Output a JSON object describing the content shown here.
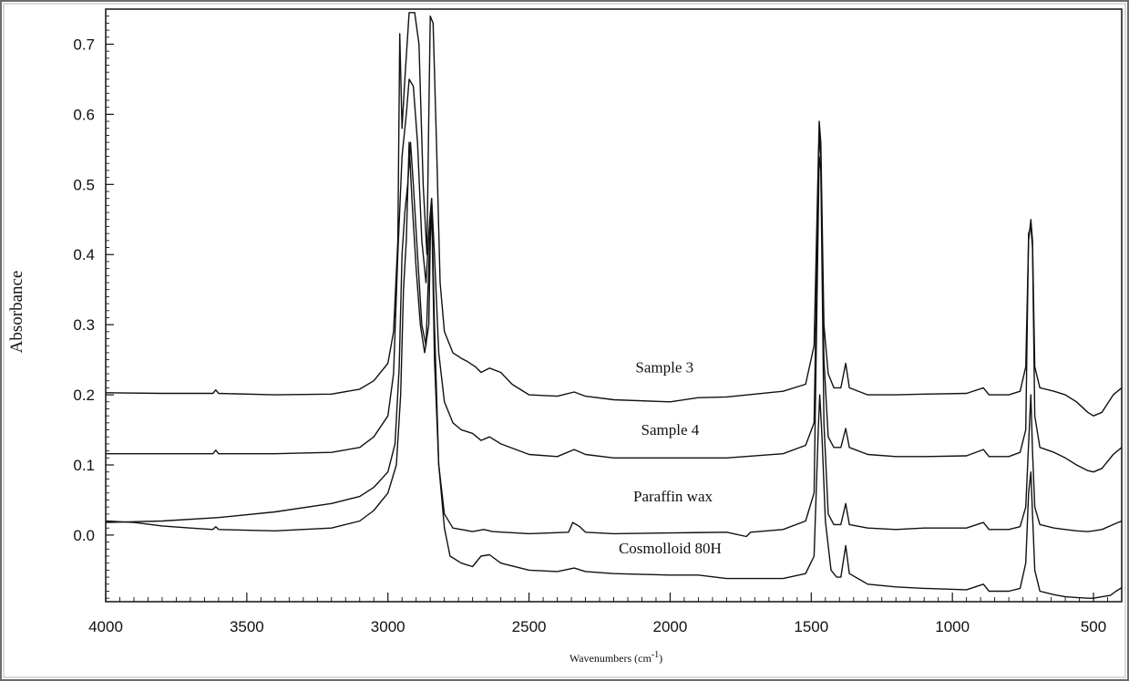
{
  "chart_data": {
    "type": "line",
    "title": "",
    "xlabel": "Wavenumbers (cm",
    "xlabel_sup": "-1",
    "xlabel_tail": ")",
    "ylabel": "Absorbance",
    "xlim": [
      4000,
      400
    ],
    "ylim": [
      -0.095,
      0.75
    ],
    "x_reversed": true,
    "grid": false,
    "x_ticks": [
      4000,
      3500,
      3000,
      2500,
      2000,
      1500,
      1000,
      500
    ],
    "x_tick_labels": [
      "4000",
      "3500",
      "3000",
      "2500",
      "2000",
      "1500",
      "1000",
      "500"
    ],
    "y_ticks": [
      0.0,
      0.1,
      0.2,
      0.3,
      0.4,
      0.5,
      0.6,
      0.7
    ],
    "y_tick_labels": [
      "0.0",
      "0.1",
      "0.2",
      "0.3",
      "0.4",
      "0.5",
      "0.6",
      "0.7"
    ],
    "line_color": "#111111",
    "series": [
      {
        "name": "Sample 3",
        "label_at": [
          2020,
          0.232
        ],
        "points": [
          [
            4000,
            0.203
          ],
          [
            3800,
            0.202
          ],
          [
            3620,
            0.202
          ],
          [
            3610,
            0.207
          ],
          [
            3600,
            0.202
          ],
          [
            3400,
            0.2
          ],
          [
            3200,
            0.201
          ],
          [
            3100,
            0.208
          ],
          [
            3050,
            0.22
          ],
          [
            3000,
            0.245
          ],
          [
            2980,
            0.29
          ],
          [
            2965,
            0.42
          ],
          [
            2958,
            0.715
          ],
          [
            2950,
            0.58
          ],
          [
            2940,
            0.65
          ],
          [
            2925,
            0.745
          ],
          [
            2905,
            0.745
          ],
          [
            2890,
            0.7
          ],
          [
            2875,
            0.5
          ],
          [
            2862,
            0.4
          ],
          [
            2855,
            0.6
          ],
          [
            2850,
            0.74
          ],
          [
            2840,
            0.73
          ],
          [
            2828,
            0.56
          ],
          [
            2815,
            0.36
          ],
          [
            2800,
            0.29
          ],
          [
            2770,
            0.26
          ],
          [
            2740,
            0.252
          ],
          [
            2720,
            0.248
          ],
          [
            2690,
            0.24
          ],
          [
            2670,
            0.232
          ],
          [
            2640,
            0.238
          ],
          [
            2600,
            0.232
          ],
          [
            2560,
            0.215
          ],
          [
            2500,
            0.2
          ],
          [
            2400,
            0.198
          ],
          [
            2340,
            0.204
          ],
          [
            2300,
            0.198
          ],
          [
            2200,
            0.193
          ],
          [
            2000,
            0.19
          ],
          [
            1900,
            0.196
          ],
          [
            1800,
            0.197
          ],
          [
            1600,
            0.205
          ],
          [
            1520,
            0.215
          ],
          [
            1490,
            0.27
          ],
          [
            1472,
            0.59
          ],
          [
            1466,
            0.56
          ],
          [
            1455,
            0.3
          ],
          [
            1440,
            0.23
          ],
          [
            1420,
            0.21
          ],
          [
            1395,
            0.21
          ],
          [
            1378,
            0.245
          ],
          [
            1365,
            0.21
          ],
          [
            1300,
            0.2
          ],
          [
            1200,
            0.2
          ],
          [
            1100,
            0.201
          ],
          [
            950,
            0.202
          ],
          [
            890,
            0.21
          ],
          [
            870,
            0.2
          ],
          [
            800,
            0.2
          ],
          [
            760,
            0.205
          ],
          [
            740,
            0.24
          ],
          [
            730,
            0.42
          ],
          [
            722,
            0.45
          ],
          [
            716,
            0.42
          ],
          [
            708,
            0.24
          ],
          [
            690,
            0.21
          ],
          [
            640,
            0.205
          ],
          [
            600,
            0.2
          ],
          [
            560,
            0.19
          ],
          [
            520,
            0.175
          ],
          [
            500,
            0.17
          ],
          [
            470,
            0.175
          ],
          [
            430,
            0.2
          ],
          [
            400,
            0.21
          ]
        ]
      },
      {
        "name": "Sample 4",
        "label_at": [
          2000,
          0.143
        ],
        "points": [
          [
            4000,
            0.116
          ],
          [
            3800,
            0.116
          ],
          [
            3620,
            0.116
          ],
          [
            3610,
            0.121
          ],
          [
            3600,
            0.116
          ],
          [
            3400,
            0.116
          ],
          [
            3200,
            0.118
          ],
          [
            3100,
            0.125
          ],
          [
            3050,
            0.14
          ],
          [
            3000,
            0.17
          ],
          [
            2980,
            0.23
          ],
          [
            2965,
            0.4
          ],
          [
            2950,
            0.54
          ],
          [
            2935,
            0.6
          ],
          [
            2925,
            0.65
          ],
          [
            2910,
            0.64
          ],
          [
            2895,
            0.56
          ],
          [
            2880,
            0.42
          ],
          [
            2865,
            0.36
          ],
          [
            2852,
            0.45
          ],
          [
            2845,
            0.48
          ],
          [
            2835,
            0.4
          ],
          [
            2820,
            0.26
          ],
          [
            2800,
            0.19
          ],
          [
            2770,
            0.16
          ],
          [
            2740,
            0.15
          ],
          [
            2700,
            0.145
          ],
          [
            2670,
            0.135
          ],
          [
            2640,
            0.14
          ],
          [
            2600,
            0.13
          ],
          [
            2500,
            0.115
          ],
          [
            2400,
            0.112
          ],
          [
            2340,
            0.122
          ],
          [
            2300,
            0.115
          ],
          [
            2200,
            0.11
          ],
          [
            2000,
            0.11
          ],
          [
            1800,
            0.11
          ],
          [
            1600,
            0.116
          ],
          [
            1520,
            0.128
          ],
          [
            1490,
            0.16
          ],
          [
            1472,
            0.57
          ],
          [
            1466,
            0.54
          ],
          [
            1455,
            0.25
          ],
          [
            1440,
            0.14
          ],
          [
            1420,
            0.125
          ],
          [
            1395,
            0.125
          ],
          [
            1378,
            0.152
          ],
          [
            1365,
            0.125
          ],
          [
            1300,
            0.115
          ],
          [
            1200,
            0.112
          ],
          [
            1100,
            0.112
          ],
          [
            950,
            0.113
          ],
          [
            890,
            0.122
          ],
          [
            870,
            0.112
          ],
          [
            800,
            0.112
          ],
          [
            760,
            0.118
          ],
          [
            740,
            0.15
          ],
          [
            730,
            0.43
          ],
          [
            722,
            0.44
          ],
          [
            716,
            0.41
          ],
          [
            708,
            0.17
          ],
          [
            690,
            0.125
          ],
          [
            640,
            0.118
          ],
          [
            600,
            0.11
          ],
          [
            560,
            0.1
          ],
          [
            520,
            0.092
          ],
          [
            500,
            0.09
          ],
          [
            470,
            0.095
          ],
          [
            430,
            0.115
          ],
          [
            400,
            0.125
          ]
        ]
      },
      {
        "name": "Paraffin wax",
        "label_at": [
          1990,
          0.048
        ],
        "points": [
          [
            4000,
            0.018
          ],
          [
            3800,
            0.02
          ],
          [
            3600,
            0.025
          ],
          [
            3400,
            0.033
          ],
          [
            3200,
            0.045
          ],
          [
            3100,
            0.055
          ],
          [
            3050,
            0.068
          ],
          [
            3000,
            0.09
          ],
          [
            2975,
            0.13
          ],
          [
            2960,
            0.24
          ],
          [
            2950,
            0.4
          ],
          [
            2940,
            0.46
          ],
          [
            2930,
            0.5
          ],
          [
            2920,
            0.56
          ],
          [
            2910,
            0.5
          ],
          [
            2895,
            0.4
          ],
          [
            2880,
            0.3
          ],
          [
            2865,
            0.27
          ],
          [
            2852,
            0.42
          ],
          [
            2845,
            0.48
          ],
          [
            2835,
            0.3
          ],
          [
            2820,
            0.1
          ],
          [
            2800,
            0.03
          ],
          [
            2770,
            0.01
          ],
          [
            2740,
            0.008
          ],
          [
            2700,
            0.005
          ],
          [
            2660,
            0.008
          ],
          [
            2630,
            0.005
          ],
          [
            2500,
            0.002
          ],
          [
            2360,
            0.004
          ],
          [
            2345,
            0.018
          ],
          [
            2320,
            0.012
          ],
          [
            2300,
            0.004
          ],
          [
            2200,
            0.002
          ],
          [
            2000,
            0.003
          ],
          [
            1800,
            0.004
          ],
          [
            1730,
            -0.002
          ],
          [
            1715,
            0.004
          ],
          [
            1600,
            0.008
          ],
          [
            1520,
            0.02
          ],
          [
            1490,
            0.06
          ],
          [
            1472,
            0.54
          ],
          [
            1466,
            0.52
          ],
          [
            1455,
            0.16
          ],
          [
            1440,
            0.03
          ],
          [
            1420,
            0.015
          ],
          [
            1395,
            0.015
          ],
          [
            1378,
            0.045
          ],
          [
            1365,
            0.015
          ],
          [
            1300,
            0.01
          ],
          [
            1200,
            0.008
          ],
          [
            1100,
            0.01
          ],
          [
            950,
            0.01
          ],
          [
            890,
            0.018
          ],
          [
            870,
            0.008
          ],
          [
            800,
            0.008
          ],
          [
            760,
            0.012
          ],
          [
            740,
            0.04
          ],
          [
            730,
            0.13
          ],
          [
            722,
            0.2
          ],
          [
            716,
            0.12
          ],
          [
            708,
            0.04
          ],
          [
            690,
            0.015
          ],
          [
            640,
            0.01
          ],
          [
            600,
            0.008
          ],
          [
            560,
            0.006
          ],
          [
            520,
            0.005
          ],
          [
            500,
            0.006
          ],
          [
            470,
            0.008
          ],
          [
            430,
            0.015
          ],
          [
            400,
            0.02
          ]
        ]
      },
      {
        "name": "Cosmolloid 80H",
        "label_at": [
          2000,
          -0.026
        ],
        "points": [
          [
            4000,
            0.02
          ],
          [
            3900,
            0.018
          ],
          [
            3800,
            0.013
          ],
          [
            3700,
            0.01
          ],
          [
            3620,
            0.008
          ],
          [
            3610,
            0.012
          ],
          [
            3600,
            0.008
          ],
          [
            3400,
            0.006
          ],
          [
            3200,
            0.01
          ],
          [
            3100,
            0.02
          ],
          [
            3050,
            0.035
          ],
          [
            3000,
            0.06
          ],
          [
            2970,
            0.1
          ],
          [
            2955,
            0.2
          ],
          [
            2945,
            0.35
          ],
          [
            2935,
            0.42
          ],
          [
            2925,
            0.56
          ],
          [
            2915,
            0.48
          ],
          [
            2900,
            0.38
          ],
          [
            2885,
            0.3
          ],
          [
            2870,
            0.26
          ],
          [
            2855,
            0.3
          ],
          [
            2850,
            0.42
          ],
          [
            2845,
            0.47
          ],
          [
            2835,
            0.25
          ],
          [
            2820,
            0.1
          ],
          [
            2800,
            0.01
          ],
          [
            2780,
            -0.03
          ],
          [
            2740,
            -0.04
          ],
          [
            2700,
            -0.045
          ],
          [
            2670,
            -0.03
          ],
          [
            2640,
            -0.028
          ],
          [
            2600,
            -0.04
          ],
          [
            2500,
            -0.05
          ],
          [
            2400,
            -0.052
          ],
          [
            2340,
            -0.047
          ],
          [
            2300,
            -0.052
          ],
          [
            2200,
            -0.055
          ],
          [
            2000,
            -0.057
          ],
          [
            1900,
            -0.057
          ],
          [
            1800,
            -0.062
          ],
          [
            1600,
            -0.062
          ],
          [
            1520,
            -0.055
          ],
          [
            1490,
            -0.03
          ],
          [
            1475,
            0.15
          ],
          [
            1470,
            0.2
          ],
          [
            1462,
            0.14
          ],
          [
            1450,
            0.02
          ],
          [
            1430,
            -0.05
          ],
          [
            1410,
            -0.06
          ],
          [
            1395,
            -0.06
          ],
          [
            1378,
            -0.015
          ],
          [
            1365,
            -0.055
          ],
          [
            1300,
            -0.07
          ],
          [
            1200,
            -0.074
          ],
          [
            1100,
            -0.076
          ],
          [
            950,
            -0.078
          ],
          [
            890,
            -0.07
          ],
          [
            870,
            -0.08
          ],
          [
            800,
            -0.08
          ],
          [
            760,
            -0.076
          ],
          [
            740,
            -0.04
          ],
          [
            730,
            0.06
          ],
          [
            722,
            0.09
          ],
          [
            716,
            0.03
          ],
          [
            708,
            -0.05
          ],
          [
            690,
            -0.08
          ],
          [
            640,
            -0.085
          ],
          [
            600,
            -0.088
          ],
          [
            560,
            -0.089
          ],
          [
            520,
            -0.09
          ],
          [
            500,
            -0.09
          ],
          [
            470,
            -0.088
          ],
          [
            440,
            -0.086
          ],
          [
            420,
            -0.08
          ],
          [
            400,
            -0.075
          ]
        ]
      }
    ]
  }
}
